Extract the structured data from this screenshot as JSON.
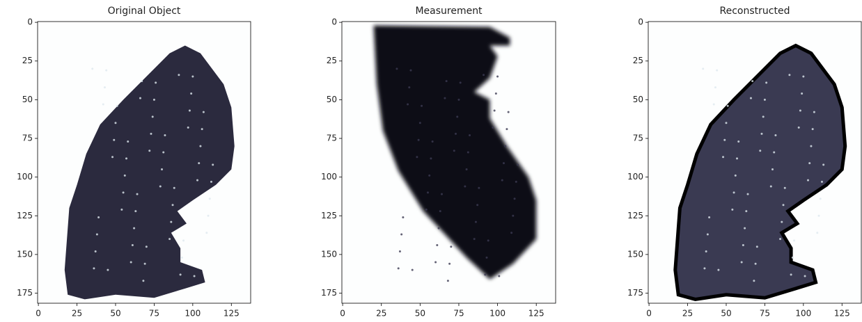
{
  "chart_data": [
    {
      "type": "image",
      "title": "Original Object",
      "xlim": [
        -0.5,
        137.5
      ],
      "ylim": [
        181.5,
        -0.5
      ],
      "xticks": [
        0,
        25,
        50,
        75,
        100,
        125
      ],
      "yticks": [
        0,
        25,
        50,
        75,
        100,
        125,
        150,
        175
      ],
      "color": "#2b2a3e"
    },
    {
      "type": "image",
      "title": "Measurement",
      "xlim": [
        -0.5,
        137.5
      ],
      "ylim": [
        181.5,
        -0.5
      ],
      "xticks": [
        0,
        25,
        50,
        75,
        100,
        125
      ],
      "yticks": [
        0,
        25,
        50,
        75,
        100,
        125,
        150,
        175
      ],
      "color": "#111019"
    },
    {
      "type": "image",
      "title": "Reconstructed",
      "xlim": [
        -0.5,
        137.5
      ],
      "ylim": [
        181.5,
        -0.5
      ],
      "xticks": [
        0,
        25,
        50,
        75,
        100,
        125
      ],
      "yticks": [
        0,
        25,
        50,
        75,
        100,
        125,
        150,
        175
      ],
      "color": "#3a3a52"
    }
  ]
}
